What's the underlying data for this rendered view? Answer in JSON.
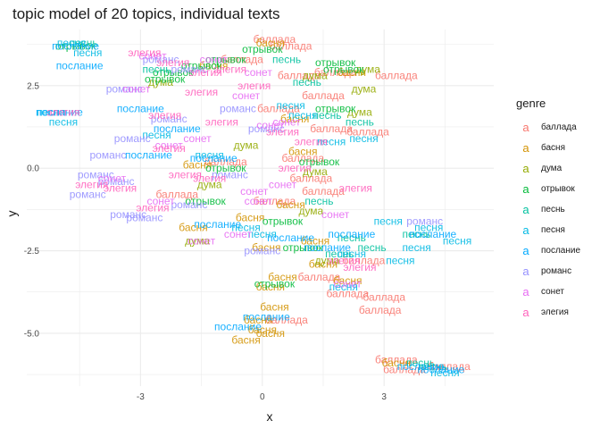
{
  "chart_data": {
    "type": "scatter",
    "title": "topic model of 20 topics, individual texts",
    "xlabel": "x",
    "ylabel": "y",
    "xlim": [
      -5.8,
      5.7
    ],
    "ylim": [
      -6.6,
      4.2
    ],
    "x_ticks": [
      -3,
      0,
      3
    ],
    "y_ticks": [
      -5.0,
      -2.5,
      0.0,
      2.5
    ],
    "x_tick_labels": [
      "-3",
      "0",
      "3"
    ],
    "y_tick_labels": [
      "-5.0",
      "-2.5",
      "0.0",
      "2.5"
    ],
    "grid": true,
    "legend_title": "genre",
    "legend_position": "right",
    "legend_glyph": "a",
    "series": [
      {
        "name": "баллада",
        "color": "#F8766D",
        "points": [
          [
            0.3,
            3.9
          ],
          [
            0.7,
            3.7
          ],
          [
            -0.5,
            3.3
          ],
          [
            0.9,
            2.8
          ],
          [
            1.8,
            2.9
          ],
          [
            3.3,
            2.8
          ],
          [
            1.5,
            2.2
          ],
          [
            0.4,
            1.8
          ],
          [
            1.7,
            1.2
          ],
          [
            2.6,
            1.1
          ],
          [
            1.0,
            0.3
          ],
          [
            -0.9,
            0.2
          ],
          [
            1.2,
            -0.3
          ],
          [
            1.5,
            -0.7
          ],
          [
            0.3,
            -1.0
          ],
          [
            -2.1,
            -0.8
          ],
          [
            2.5,
            -2.8
          ],
          [
            1.4,
            -3.3
          ],
          [
            2.1,
            -3.8
          ],
          [
            3.0,
            -3.9
          ],
          [
            2.9,
            -4.3
          ],
          [
            0.6,
            -4.6
          ],
          [
            3.3,
            -5.8
          ],
          [
            3.5,
            -6.1
          ],
          [
            4.6,
            -6.0
          ]
        ]
      },
      {
        "name": "басня",
        "color": "#D39200",
        "points": [
          [
            0.2,
            3.8
          ],
          [
            -1.2,
            3.1
          ],
          [
            2.2,
            2.9
          ],
          [
            0.8,
            1.5
          ],
          [
            1.0,
            0.5
          ],
          [
            -1.6,
            0.1
          ],
          [
            0.7,
            -1.1
          ],
          [
            -1.7,
            -1.8
          ],
          [
            -0.3,
            -1.5
          ],
          [
            1.3,
            -2.2
          ],
          [
            0.1,
            -2.4
          ],
          [
            1.5,
            -2.9
          ],
          [
            0.5,
            -3.3
          ],
          [
            0.2,
            -3.6
          ],
          [
            2.1,
            -3.4
          ],
          [
            0.3,
            -4.2
          ],
          [
            -0.1,
            -4.6
          ],
          [
            0.2,
            -5.0
          ],
          [
            -0.4,
            -5.2
          ],
          [
            0.0,
            -4.9
          ],
          [
            3.3,
            -5.9
          ]
        ]
      },
      {
        "name": "дума",
        "color": "#93AA00",
        "points": [
          [
            -2.5,
            2.6
          ],
          [
            2.6,
            3.0
          ],
          [
            2.5,
            2.4
          ],
          [
            1.3,
            2.8
          ],
          [
            2.4,
            1.7
          ],
          [
            -0.4,
            0.7
          ],
          [
            1.3,
            -0.1
          ],
          [
            -1.3,
            -0.5
          ],
          [
            1.2,
            -1.3
          ],
          [
            -1.6,
            -2.2
          ],
          [
            1.6,
            -2.8
          ]
        ]
      },
      {
        "name": "отрывок",
        "color": "#00BA38",
        "points": [
          [
            -4.6,
            3.7
          ],
          [
            0.0,
            3.6
          ],
          [
            -0.9,
            3.3
          ],
          [
            -1.5,
            3.1
          ],
          [
            -2.2,
            2.9
          ],
          [
            1.8,
            3.2
          ],
          [
            2.0,
            3.0
          ],
          [
            1.8,
            1.8
          ],
          [
            -2.4,
            2.7
          ],
          [
            -0.9,
            0.0
          ],
          [
            1.4,
            0.2
          ],
          [
            -1.4,
            -1.0
          ],
          [
            0.5,
            -1.6
          ],
          [
            0.3,
            -3.5
          ],
          [
            1.0,
            -2.4
          ]
        ]
      },
      {
        "name": "песнь",
        "color": "#00C19F",
        "points": [
          [
            -4.4,
            3.8
          ],
          [
            -2.6,
            3.0
          ],
          [
            0.6,
            3.3
          ],
          [
            1.1,
            2.6
          ],
          [
            1.6,
            1.6
          ],
          [
            2.4,
            1.4
          ],
          [
            1.4,
            -1.0
          ],
          [
            2.2,
            -2.1
          ],
          [
            2.7,
            -2.4
          ],
          [
            3.8,
            -2.0
          ],
          [
            1.9,
            -2.6
          ],
          [
            4.2,
            -6.0
          ],
          [
            3.9,
            -5.9
          ]
        ]
      },
      {
        "name": "песня",
        "color": "#00B9E3",
        "points": [
          [
            -4.7,
            3.8
          ],
          [
            -4.3,
            3.5
          ],
          [
            -5.2,
            1.7
          ],
          [
            -4.9,
            1.4
          ],
          [
            -2.6,
            1.0
          ],
          [
            -1.3,
            0.4
          ],
          [
            0.7,
            1.9
          ],
          [
            1.0,
            1.6
          ],
          [
            1.7,
            0.8
          ],
          [
            2.5,
            0.9
          ],
          [
            -0.4,
            -1.8
          ],
          [
            3.1,
            -1.6
          ],
          [
            4.1,
            -1.8
          ],
          [
            4.8,
            -2.2
          ],
          [
            2.2,
            -2.6
          ],
          [
            3.4,
            -2.8
          ],
          [
            3.8,
            -2.4
          ],
          [
            2.0,
            -3.6
          ],
          [
            0.0,
            -2.0
          ],
          [
            4.5,
            -6.2
          ]
        ]
      },
      {
        "name": "послание",
        "color": "#00A9FF",
        "points": [
          [
            -4.6,
            3.7
          ],
          [
            -4.5,
            3.1
          ],
          [
            -5.0,
            1.7
          ],
          [
            -3.0,
            1.8
          ],
          [
            -2.1,
            1.2
          ],
          [
            -2.8,
            0.4
          ],
          [
            -1.2,
            0.3
          ],
          [
            -1.1,
            -1.7
          ],
          [
            0.7,
            -2.1
          ],
          [
            1.6,
            -2.4
          ],
          [
            2.2,
            -2.0
          ],
          [
            4.2,
            -2.0
          ],
          [
            -0.6,
            -4.8
          ],
          [
            0.1,
            -4.5
          ],
          [
            3.9,
            -6.0
          ],
          [
            4.4,
            -6.1
          ]
        ]
      },
      {
        "name": "романс",
        "color": "#9590FF",
        "points": [
          [
            -2.5,
            3.3
          ],
          [
            -1.8,
            3.0
          ],
          [
            -3.4,
            2.4
          ],
          [
            -0.6,
            1.8
          ],
          [
            -2.3,
            1.5
          ],
          [
            0.1,
            1.2
          ],
          [
            -3.2,
            0.9
          ],
          [
            -3.8,
            0.4
          ],
          [
            -4.1,
            -0.2
          ],
          [
            -4.3,
            -0.8
          ],
          [
            -3.6,
            -0.4
          ],
          [
            -1.8,
            -1.1
          ],
          [
            -0.8,
            -0.2
          ],
          [
            0.0,
            -2.5
          ],
          [
            -2.9,
            -1.5
          ],
          [
            4.0,
            -1.6
          ],
          [
            -3.3,
            -1.4
          ]
        ]
      },
      {
        "name": "сонет",
        "color": "#E76BF3",
        "points": [
          [
            -2.7,
            3.4
          ],
          [
            -1.2,
            3.3
          ],
          [
            -0.1,
            2.9
          ],
          [
            -3.1,
            2.4
          ],
          [
            -0.4,
            2.2
          ],
          [
            0.6,
            1.4
          ],
          [
            0.2,
            1.3
          ],
          [
            -2.3,
            0.7
          ],
          [
            -1.6,
            0.9
          ],
          [
            -3.7,
            -0.3
          ],
          [
            -2.5,
            -1.0
          ],
          [
            -0.2,
            -0.7
          ],
          [
            0.5,
            -0.5
          ],
          [
            -1.5,
            -2.2
          ],
          [
            -0.6,
            -2.0
          ],
          [
            1.8,
            -1.4
          ],
          [
            2.1,
            -3.5
          ],
          [
            -0.1,
            -1.0
          ]
        ]
      },
      {
        "name": "элегия",
        "color": "#FF62BC",
        "points": [
          [
            -2.9,
            3.5
          ],
          [
            -2.2,
            3.2
          ],
          [
            -1.4,
            2.9
          ],
          [
            -0.8,
            3.0
          ],
          [
            -0.2,
            2.5
          ],
          [
            -1.5,
            2.3
          ],
          [
            -4.9,
            1.7
          ],
          [
            -2.4,
            1.6
          ],
          [
            -1.0,
            1.4
          ],
          [
            0.5,
            1.1
          ],
          [
            1.2,
            0.8
          ],
          [
            -2.3,
            0.6
          ],
          [
            -1.9,
            -0.2
          ],
          [
            -4.2,
            -0.5
          ],
          [
            -3.5,
            -0.6
          ],
          [
            -1.3,
            -0.3
          ],
          [
            0.8,
            0.0
          ],
          [
            -2.7,
            -1.2
          ],
          [
            2.3,
            -0.6
          ],
          [
            2.4,
            -3.0
          ],
          [
            2.0,
            -2.8
          ]
        ]
      }
    ]
  }
}
